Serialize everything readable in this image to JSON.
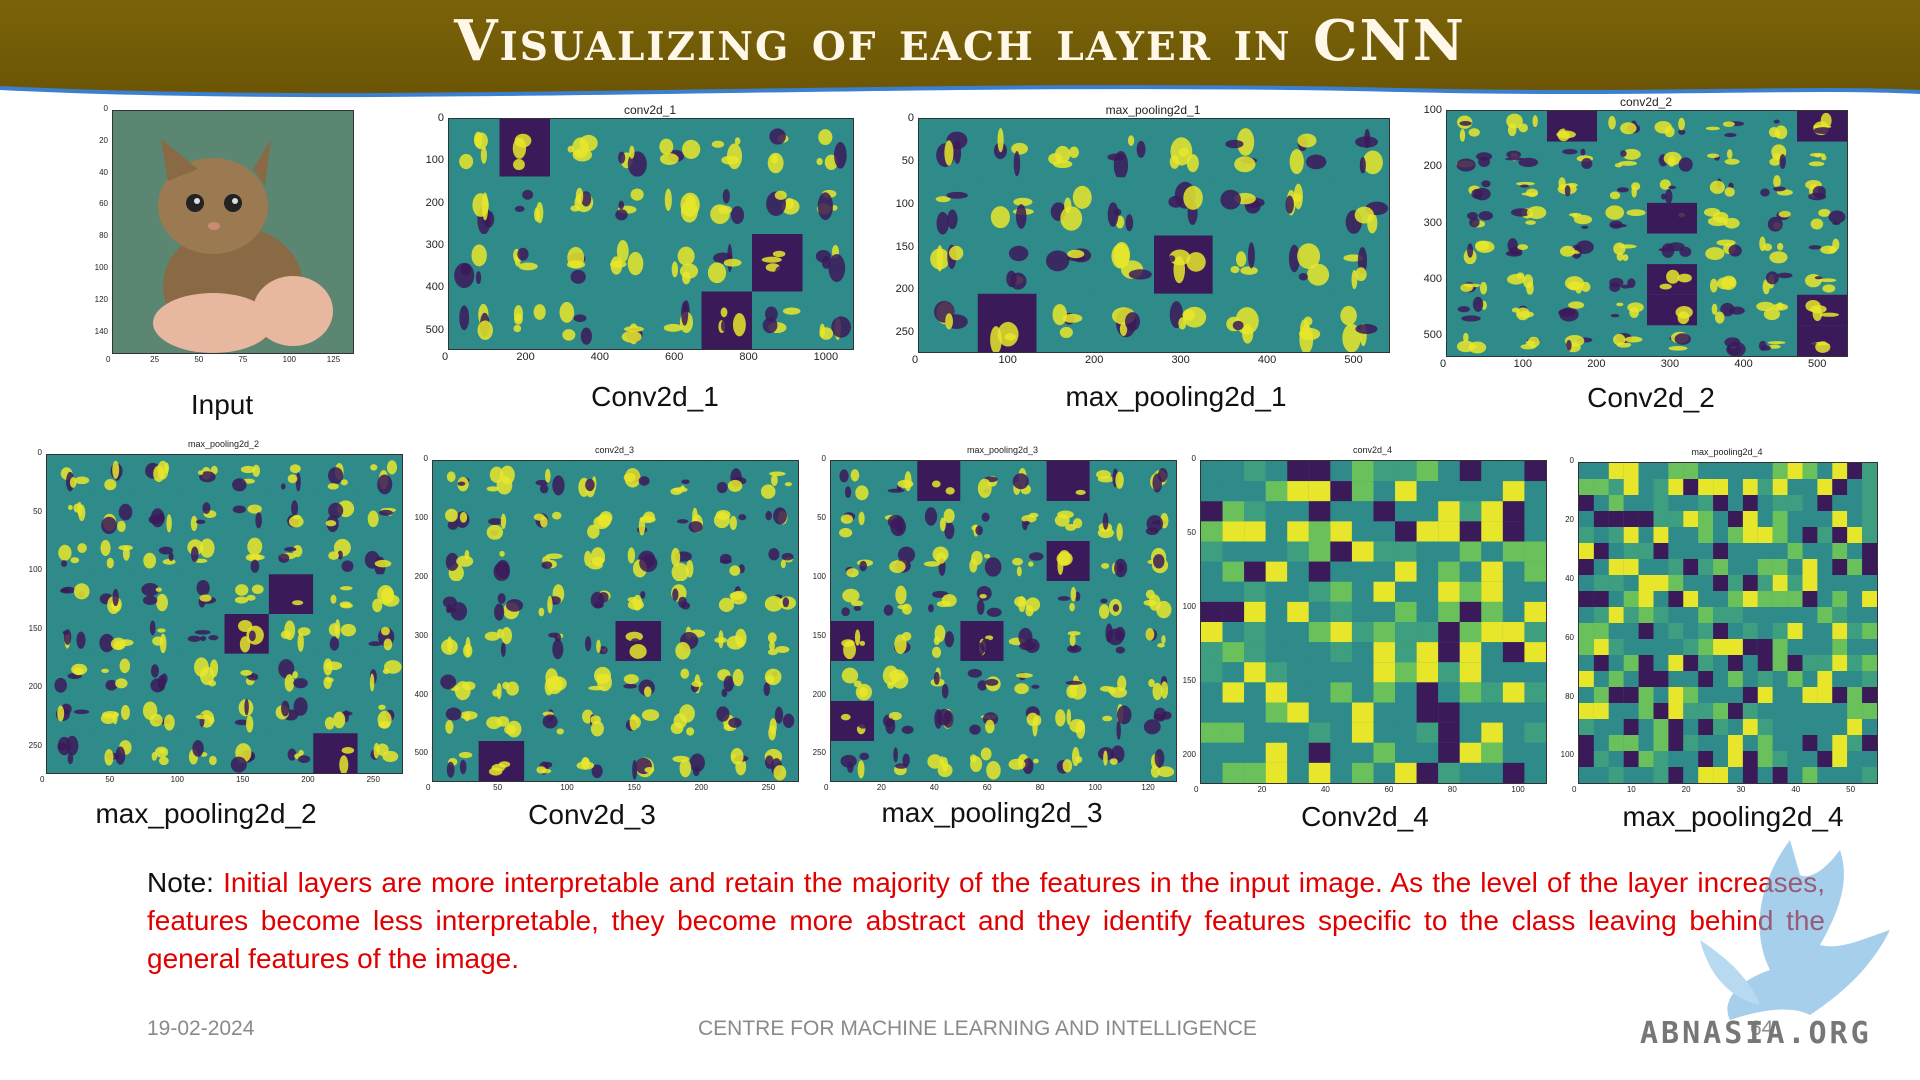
{
  "slide": {
    "title": "Visualizing of each layer in CNN",
    "note_label": "Note:",
    "note_text": "Initial layers are more interpretable and retain the majority of the features in the input image. As the level of the layer increases, features become less interpretable, they become more abstract and they identify features specific to the class leaving behind the general features of the image.",
    "footer_date": "19-02-2024",
    "footer_center": "CENTRE FOR MACHINE LEARNING AND INTELLIGENCE",
    "page_number": "64",
    "watermark_text": "ABNASIA.ORG"
  },
  "panels": [
    {
      "id": "input",
      "caption": "Input",
      "plot_title": "",
      "x_ticks": [
        "0",
        "25",
        "50",
        "75",
        "100",
        "125"
      ],
      "y_ticks": [
        "0",
        "20",
        "40",
        "60",
        "80",
        "100",
        "120",
        "140"
      ]
    },
    {
      "id": "conv2d_1",
      "caption": "Conv2d_1",
      "plot_title": "conv2d_1",
      "x_ticks": [
        "0",
        "200",
        "400",
        "600",
        "800",
        "1000"
      ],
      "y_ticks": [
        "0",
        "100",
        "200",
        "300",
        "400",
        "500"
      ]
    },
    {
      "id": "max_pooling2d_1",
      "caption": "max_pooling2d_1",
      "plot_title": "max_pooling2d_1",
      "x_ticks": [
        "0",
        "100",
        "200",
        "300",
        "400",
        "500"
      ],
      "y_ticks": [
        "0",
        "50",
        "100",
        "150",
        "200",
        "250"
      ]
    },
    {
      "id": "conv2d_2",
      "caption": "Conv2d_2",
      "plot_title": "conv2d_2",
      "x_ticks": [
        "0",
        "100",
        "200",
        "300",
        "400",
        "500"
      ],
      "y_ticks": [
        "100",
        "200",
        "300",
        "400",
        "500"
      ]
    },
    {
      "id": "max_pooling2d_2",
      "caption": "max_pooling2d_2",
      "plot_title": "max_pooling2d_2",
      "x_ticks": [
        "0",
        "50",
        "100",
        "150",
        "200",
        "250"
      ],
      "y_ticks": [
        "0",
        "50",
        "100",
        "150",
        "200",
        "250"
      ]
    },
    {
      "id": "conv2d_3",
      "caption": "Conv2d_3",
      "plot_title": "conv2d_3",
      "x_ticks": [
        "0",
        "50",
        "100",
        "150",
        "200",
        "250"
      ],
      "y_ticks": [
        "0",
        "100",
        "200",
        "300",
        "400",
        "500"
      ]
    },
    {
      "id": "max_pooling2d_3",
      "caption": "max_pooling2d_3",
      "plot_title": "max_pooling2d_3",
      "x_ticks": [
        "0",
        "20",
        "40",
        "60",
        "80",
        "100",
        "120"
      ],
      "y_ticks": [
        "0",
        "50",
        "100",
        "150",
        "200",
        "250"
      ]
    },
    {
      "id": "conv2d_4",
      "caption": "Conv2d_4",
      "plot_title": "conv2d_4",
      "x_ticks": [
        "0",
        "20",
        "40",
        "60",
        "80",
        "100"
      ],
      "y_ticks": [
        "0",
        "50",
        "100",
        "150",
        "200"
      ]
    },
    {
      "id": "max_pooling2d_4",
      "caption": "max_pooling2d_4",
      "plot_title": "max_pooling2d_4",
      "x_ticks": [
        "0",
        "10",
        "20",
        "30",
        "40",
        "50"
      ],
      "y_ticks": [
        "0",
        "20",
        "40",
        "60",
        "80",
        "100"
      ]
    }
  ],
  "colors": {
    "header": "#6b5506",
    "note_text": "#e00000",
    "feature_low": "#3b1a5a",
    "feature_mid": "#2f8a8a",
    "feature_high": "#e8e62a"
  }
}
